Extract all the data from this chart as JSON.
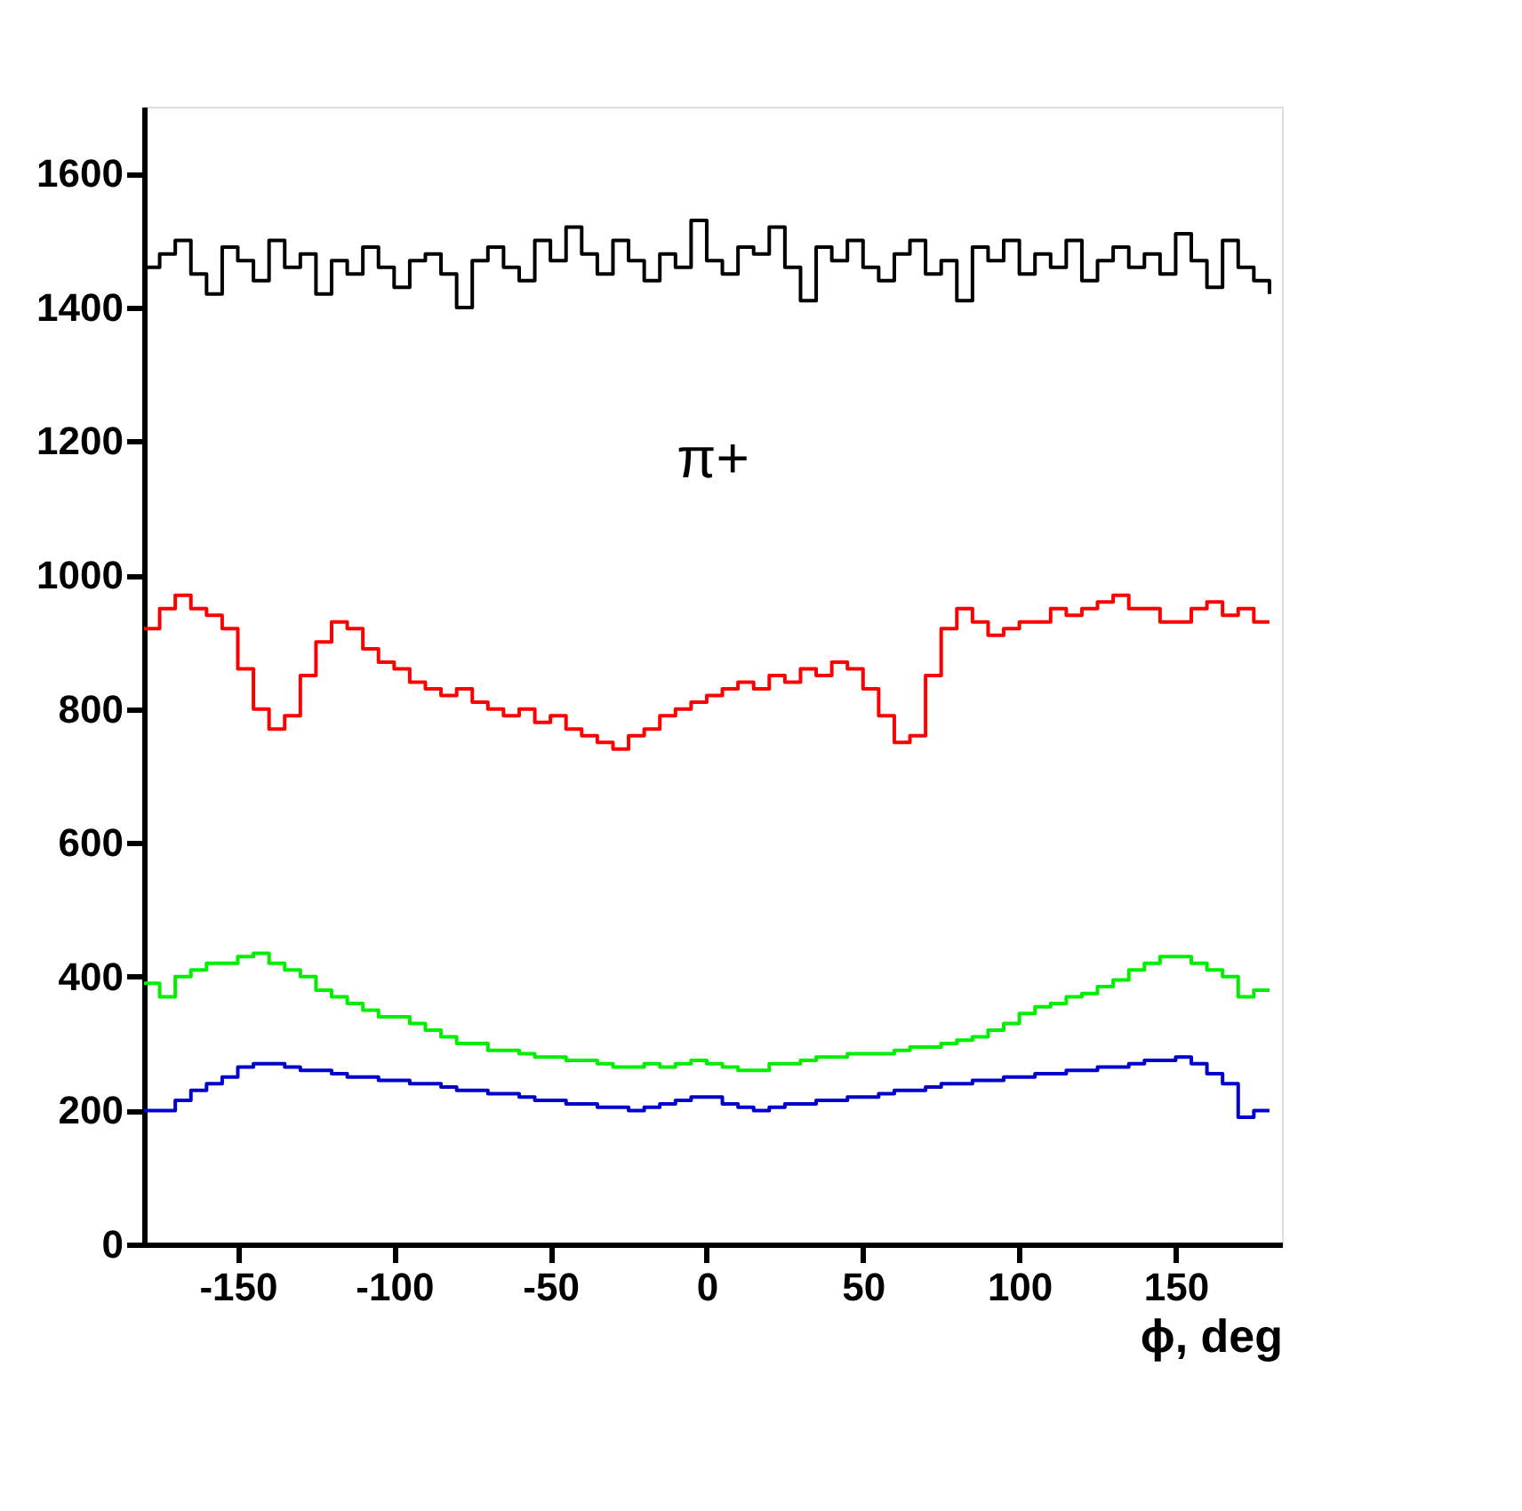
{
  "chart_data": {
    "type": "step",
    "xlabel": "ϕ, deg",
    "annotations": [
      "π+"
    ],
    "xlim": [
      -180,
      184
    ],
    "ylim": [
      0,
      1700
    ],
    "xticks": [
      -150,
      -100,
      -50,
      0,
      50,
      100,
      150
    ],
    "yticks": [
      0,
      200,
      400,
      600,
      800,
      1000,
      1200,
      1400,
      1600
    ],
    "grid": false,
    "legend": false,
    "x": [
      -180,
      -175,
      -170,
      -165,
      -160,
      -155,
      -150,
      -145,
      -140,
      -135,
      -130,
      -125,
      -120,
      -115,
      -110,
      -105,
      -100,
      -95,
      -90,
      -85,
      -80,
      -75,
      -70,
      -65,
      -60,
      -55,
      -50,
      -45,
      -40,
      -35,
      -30,
      -25,
      -20,
      -15,
      -10,
      -5,
      0,
      5,
      10,
      15,
      20,
      25,
      30,
      35,
      40,
      45,
      50,
      55,
      60,
      65,
      70,
      75,
      80,
      85,
      90,
      95,
      100,
      105,
      110,
      115,
      120,
      125,
      130,
      135,
      140,
      145,
      150,
      155,
      160,
      165,
      170,
      175,
      180
    ],
    "series": [
      {
        "color": "#000000",
        "values": [
          1460,
          1480,
          1500,
          1450,
          1420,
          1490,
          1470,
          1440,
          1500,
          1460,
          1480,
          1420,
          1470,
          1450,
          1490,
          1460,
          1430,
          1470,
          1480,
          1450,
          1400,
          1470,
          1490,
          1460,
          1440,
          1500,
          1470,
          1520,
          1480,
          1450,
          1500,
          1470,
          1440,
          1480,
          1460,
          1530,
          1470,
          1450,
          1490,
          1480,
          1520,
          1460,
          1410,
          1490,
          1470,
          1500,
          1460,
          1440,
          1480,
          1500,
          1450,
          1470,
          1410,
          1490,
          1470,
          1500,
          1450,
          1480,
          1460,
          1500,
          1440,
          1470,
          1490,
          1460,
          1480,
          1450,
          1510,
          1470,
          1430,
          1500,
          1460,
          1440,
          1420
        ]
      },
      {
        "color": "#ff0000",
        "values": [
          920,
          950,
          970,
          950,
          940,
          920,
          860,
          800,
          770,
          790,
          850,
          900,
          930,
          920,
          890,
          870,
          860,
          840,
          830,
          820,
          830,
          810,
          800,
          790,
          800,
          780,
          790,
          770,
          760,
          750,
          740,
          760,
          770,
          790,
          800,
          810,
          820,
          830,
          840,
          830,
          850,
          840,
          860,
          850,
          870,
          860,
          830,
          790,
          750,
          760,
          850,
          920,
          950,
          930,
          910,
          920,
          930,
          930,
          950,
          940,
          950,
          960,
          970,
          950,
          950,
          930,
          930,
          950,
          960,
          940,
          950,
          930,
          930
        ]
      },
      {
        "color": "#00ee00",
        "values": [
          390,
          370,
          400,
          410,
          420,
          420,
          430,
          435,
          420,
          410,
          400,
          380,
          370,
          360,
          350,
          340,
          340,
          330,
          320,
          310,
          300,
          300,
          290,
          290,
          285,
          280,
          280,
          275,
          275,
          270,
          265,
          265,
          270,
          265,
          270,
          275,
          270,
          265,
          260,
          260,
          270,
          270,
          275,
          280,
          280,
          285,
          285,
          285,
          290,
          295,
          295,
          300,
          305,
          310,
          320,
          330,
          345,
          355,
          360,
          370,
          375,
          385,
          395,
          410,
          420,
          430,
          430,
          420,
          410,
          400,
          370,
          380,
          380
        ]
      },
      {
        "color": "#0000cc",
        "values": [
          200,
          200,
          215,
          230,
          240,
          250,
          265,
          270,
          270,
          265,
          260,
          260,
          255,
          250,
          250,
          245,
          245,
          240,
          240,
          235,
          230,
          230,
          225,
          225,
          220,
          215,
          215,
          210,
          210,
          205,
          205,
          200,
          205,
          210,
          215,
          220,
          220,
          210,
          205,
          200,
          205,
          210,
          210,
          215,
          215,
          220,
          220,
          225,
          230,
          230,
          235,
          240,
          240,
          245,
          245,
          250,
          250,
          255,
          255,
          260,
          260,
          265,
          265,
          270,
          275,
          275,
          280,
          270,
          255,
          240,
          190,
          200,
          200
        ]
      }
    ]
  }
}
